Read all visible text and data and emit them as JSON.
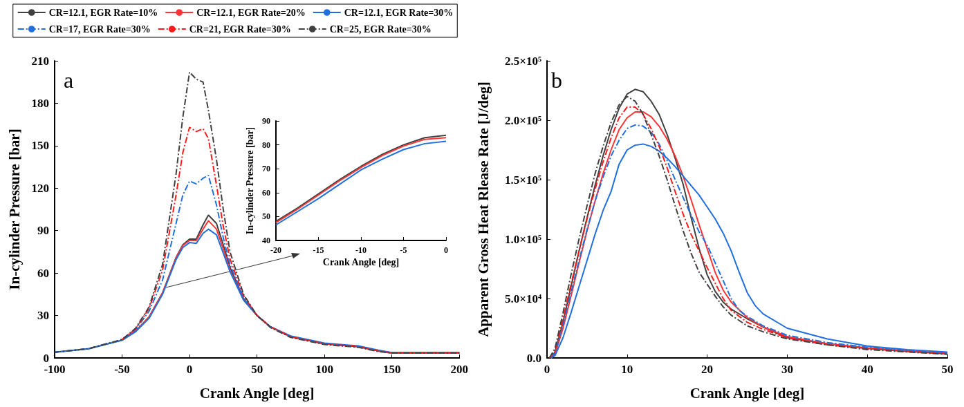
{
  "chart_data": [
    {
      "type": "line",
      "xlabel": "Crank Angle [deg]",
      "ylabel": "In-cylinder Pressure [bar]",
      "annotations": [
        "a"
      ],
      "legend": "top",
      "marker": "none",
      "x": [
        -100,
        -75,
        -50,
        -40,
        -30,
        -20,
        -10,
        -5,
        0,
        5,
        10,
        14,
        20,
        25,
        30,
        40,
        50,
        60,
        75,
        100,
        125,
        140,
        150,
        175,
        200
      ],
      "xlim": [
        -100,
        200
      ],
      "xticks": [
        -100,
        -50,
        0,
        50,
        100,
        150,
        200
      ],
      "ylim": [
        0,
        210
      ],
      "yticks": [
        0,
        30,
        60,
        90,
        120,
        150,
        180,
        210
      ],
      "series": [
        {
          "name": "CR=12.1, EGR Rate=10%",
          "color": "#404040",
          "line_style": "solid",
          "values": [
            4,
            6.5,
            12.5,
            19,
            29,
            46,
            71,
            80,
            84,
            84,
            94,
            101,
            95,
            80,
            64,
            42,
            30,
            22,
            15,
            10,
            8,
            5,
            3.5,
            3.5,
            3.5
          ]
        },
        {
          "name": "CR=12.1, EGR Rate=20%",
          "color": "#ff3333",
          "line_style": "solid",
          "values": [
            null,
            null,
            12.5,
            19,
            29,
            46,
            70.5,
            79.5,
            83,
            83,
            91,
            97,
            91,
            77,
            62,
            41,
            30,
            22,
            15,
            10,
            8,
            5,
            3.5,
            3.5,
            3.5
          ]
        },
        {
          "name": "CR=12.1, EGR Rate=30%",
          "color": "#1f6fdf",
          "line_style": "solid",
          "values": [
            4,
            6.5,
            12.5,
            18.5,
            28,
            45,
            69.5,
            78,
            81.5,
            81,
            88,
            91,
            87,
            74,
            61,
            41,
            30,
            22,
            15.5,
            10.5,
            8.5,
            5.5,
            3.8,
            3.8,
            3.8
          ]
        },
        {
          "name": "CR=17, EGR Rate=30%",
          "color": "#1f6fdf",
          "line_style": "dashed",
          "values": [
            4,
            6.5,
            13,
            20,
            33,
            55,
            95,
            115,
            125,
            123,
            127,
            129,
            108,
            85,
            66,
            43,
            30,
            22,
            15,
            10,
            8,
            5,
            3.5,
            3.5,
            3.5
          ]
        },
        {
          "name": "CR=21, EGR Rate=30%",
          "color": "#ff1a1a",
          "line_style": "dashed",
          "values": [
            null,
            null,
            13,
            20.5,
            35,
            62,
            115,
            145,
            163,
            160,
            162,
            155,
            122,
            93,
            70,
            44,
            30,
            22,
            15,
            10,
            8,
            5,
            3.5,
            3.5,
            3.5
          ]
        },
        {
          "name": "CR=25, EGR Rate=30%",
          "color": "#404040",
          "line_style": "dashed",
          "values": [
            4,
            6.5,
            13,
            21,
            36,
            66,
            130,
            170,
            202,
            197,
            195,
            175,
            140,
            105,
            75,
            45,
            30,
            21.5,
            14.5,
            9.5,
            7.5,
            4.5,
            3.5,
            3.5,
            3.5
          ]
        }
      ]
    },
    {
      "type": "line",
      "xlabel": "Crank Angle [deg]",
      "ylabel": "In-cylinder Pressure [bar]",
      "marker": "none",
      "x": [
        -20,
        -17.5,
        -15,
        -12.5,
        -10,
        -7.5,
        -5,
        -2.5,
        0
      ],
      "xlim": [
        -20,
        0
      ],
      "xticks": [
        -20,
        -15,
        -10,
        -5,
        0
      ],
      "ylim": [
        40,
        90
      ],
      "yticks": [
        40,
        50,
        60,
        70,
        80,
        90
      ],
      "series": [
        {
          "color": "#404040",
          "line_style": "solid",
          "values": [
            48,
            53.5,
            59.5,
            65.5,
            71,
            76,
            80,
            83,
            84
          ]
        },
        {
          "color": "#ff3333",
          "line_style": "solid",
          "values": [
            47.5,
            53,
            59,
            65,
            70.5,
            75.5,
            79.5,
            82.3,
            83
          ]
        },
        {
          "color": "#1f6fdf",
          "line_style": "solid",
          "values": [
            46.5,
            52,
            57.5,
            63.5,
            69.5,
            74,
            78,
            80.5,
            81.5
          ]
        }
      ]
    },
    {
      "type": "line",
      "xlabel": "Crank Angle [deg]",
      "ylabel": "Apparent Gross Heat Rlease Rate [J/deg]",
      "annotations": [
        "b"
      ],
      "marker": "none",
      "xlim": [
        0,
        50
      ],
      "xticks": [
        0,
        10,
        20,
        30,
        40,
        50
      ],
      "ylim": [
        0,
        250000
      ],
      "yticks": [
        {
          "value": 0,
          "label": "0.0"
        },
        {
          "value": 50000,
          "label": "5.0×10⁴"
        },
        {
          "value": 100000,
          "label": "1.0×10⁵"
        },
        {
          "value": 150000,
          "label": "1.5×10⁵"
        },
        {
          "value": 200000,
          "label": "2.0×10⁵"
        },
        {
          "value": 250000,
          "label": "2.5×10⁵"
        }
      ],
      "series": [
        {
          "color": "#404040",
          "line_style": "solid",
          "x": [
            0.5,
            1,
            2,
            3,
            4,
            5,
            6,
            7,
            8,
            9,
            10,
            11,
            12,
            13,
            14,
            15,
            16,
            17,
            18,
            19,
            20,
            21,
            22,
            23,
            25,
            27,
            30,
            35,
            40,
            45,
            50
          ],
          "values": [
            0,
            5000,
            30000,
            60000,
            90000,
            118000,
            145000,
            170000,
            192000,
            210000,
            222000,
            226000,
            224000,
            216000,
            205000,
            188000,
            168000,
            146000,
            118000,
            92000,
            70000,
            56000,
            47000,
            41000,
            33000,
            26000,
            17000,
            12000,
            8000,
            5500,
            3500
          ]
        },
        {
          "color": "#ff3333",
          "line_style": "solid",
          "x": [
            0.5,
            1,
            2,
            3,
            4,
            5,
            6,
            7,
            8,
            9,
            10,
            11,
            12,
            13,
            14,
            15,
            16,
            17,
            18,
            19,
            20,
            21,
            22,
            23,
            25,
            27,
            30,
            35,
            40,
            45,
            50
          ],
          "values": [
            0,
            3000,
            25000,
            52000,
            80000,
            107000,
            132000,
            155000,
            175000,
            192000,
            202000,
            207000,
            207000,
            203000,
            195000,
            184000,
            170000,
            153000,
            133000,
            112000,
            92000,
            72000,
            57000,
            47000,
            34000,
            26000,
            18000,
            12000,
            8500,
            6000,
            4000
          ]
        },
        {
          "color": "#1f6fdf",
          "line_style": "solid",
          "x": [
            0.5,
            1,
            2,
            3,
            4,
            5,
            6,
            7,
            8,
            9,
            10,
            11,
            12,
            13,
            14,
            15,
            16,
            17,
            18,
            19,
            20,
            21,
            22,
            23,
            24,
            25,
            26,
            27,
            30,
            35,
            40,
            45,
            50
          ],
          "values": [
            0,
            2000,
            17000,
            38000,
            60000,
            82000,
            104000,
            124000,
            140000,
            163000,
            175000,
            179000,
            180000,
            178000,
            174000,
            168000,
            161000,
            153000,
            145000,
            137000,
            127000,
            117000,
            105000,
            90000,
            72000,
            55000,
            44000,
            37000,
            25000,
            16000,
            10000,
            7000,
            5000
          ]
        },
        {
          "color": "#1f6fdf",
          "line_style": "dashed",
          "x": [
            0.5,
            1,
            2,
            3,
            4,
            5,
            6,
            7,
            8,
            9,
            10,
            11,
            12,
            13,
            14,
            15,
            16,
            17,
            18,
            19,
            20,
            21,
            22,
            23,
            24,
            25,
            27,
            30,
            35,
            40,
            45,
            50
          ],
          "values": [
            0,
            4000,
            28000,
            55000,
            82000,
            108000,
            132000,
            152000,
            170000,
            183000,
            193000,
            196000,
            195000,
            190000,
            180000,
            166000,
            150000,
            135000,
            120000,
            106000,
            95000,
            80000,
            65000,
            50000,
            40000,
            35000,
            27000,
            19000,
            13000,
            9000,
            6000,
            4000
          ]
        },
        {
          "color": "#ff1a1a",
          "line_style": "dashed",
          "x": [
            0.3,
            1,
            2,
            3,
            4,
            5,
            6,
            7,
            8,
            9,
            10,
            11,
            12,
            13,
            14,
            15,
            16,
            17,
            18,
            19,
            20,
            21,
            22,
            23,
            25,
            27,
            30,
            35,
            40,
            45,
            50
          ],
          "values": [
            0,
            6000,
            33000,
            62000,
            90000,
            117000,
            142000,
            165000,
            185000,
            202000,
            211000,
            211000,
            205000,
            193000,
            178000,
            160000,
            140000,
            121000,
            104000,
            90000,
            76000,
            63000,
            50000,
            40000,
            30000,
            24000,
            17000,
            11000,
            8000,
            5500,
            3500
          ]
        },
        {
          "color": "#404040",
          "line_style": "dashed",
          "x": [
            0.3,
            1,
            2,
            3,
            4,
            5,
            6,
            7,
            8,
            9,
            10,
            11,
            12,
            13,
            14,
            15,
            16,
            17,
            18,
            19,
            20,
            21,
            22,
            23,
            25,
            27,
            30,
            35,
            40,
            45,
            50
          ],
          "values": [
            0,
            8000,
            38000,
            70000,
            100000,
            128000,
            155000,
            178000,
            198000,
            213000,
            220000,
            216000,
            205000,
            188000,
            170000,
            150000,
            128000,
            107000,
            88000,
            72000,
            62000,
            52000,
            43000,
            36000,
            27000,
            22000,
            16000,
            11000,
            7000,
            5000,
            3000
          ]
        }
      ]
    }
  ]
}
